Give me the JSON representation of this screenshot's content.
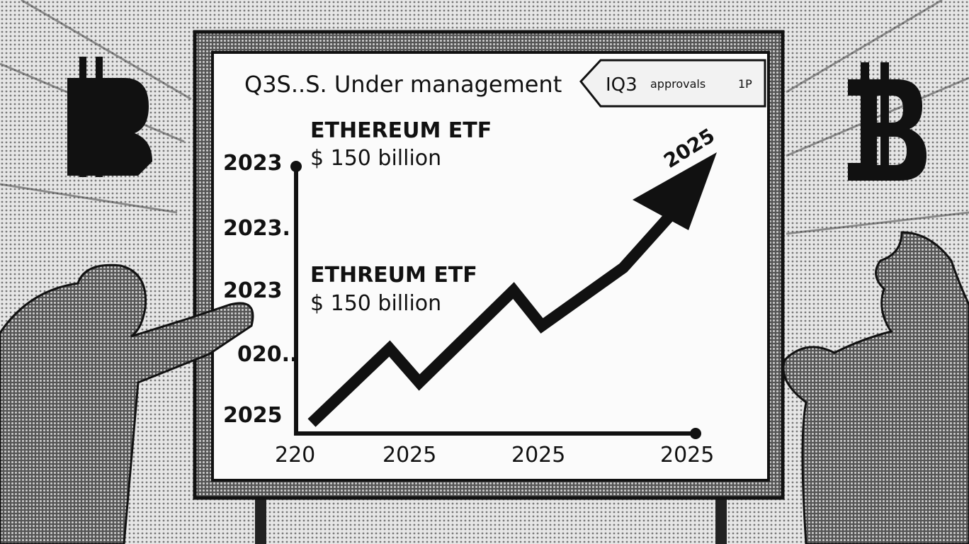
{
  "board": {
    "title": "Q3S..S. Under management",
    "tag": {
      "main": "IQ3",
      "text": "approvals",
      "suffix": "1P"
    },
    "callouts": [
      {
        "heading": "ETHEREUM ETF",
        "amount": "$ 150 billion"
      },
      {
        "heading": "ETHREUM ETF",
        "amount": "$ 150 billion"
      }
    ],
    "y_labels": [
      "2023",
      "2023.",
      "2023",
      "020..",
      "2025"
    ],
    "x_labels": [
      "220",
      "2025",
      "2025",
      "2025"
    ],
    "arrow_label": "2025"
  }
}
